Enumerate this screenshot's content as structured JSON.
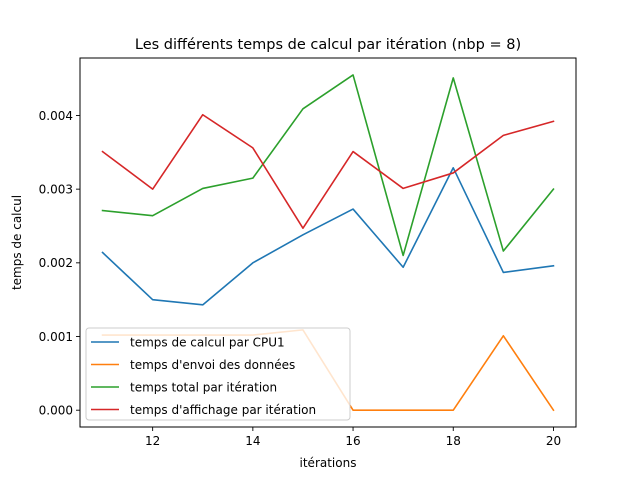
{
  "chart_data": {
    "type": "line",
    "title": "Les différents temps de calcul par itération (nbp = 8)",
    "xlabel": "itérations",
    "ylabel": "temps de calcul",
    "x": [
      11,
      12,
      13,
      14,
      15,
      16,
      17,
      18,
      19,
      20
    ],
    "xlim": [
      10.55,
      20.45
    ],
    "ylim": [
      -0.000228,
      0.00478
    ],
    "xticks": [
      12,
      14,
      16,
      18,
      20
    ],
    "yticks": [
      0.0,
      0.001,
      0.002,
      0.003,
      0.004
    ],
    "ytick_labels": [
      "0.000",
      "0.001",
      "0.002",
      "0.003",
      "0.004"
    ],
    "grid": false,
    "legend_position": "lower-left",
    "series": [
      {
        "name": "temps de calcul par CPU1",
        "color": "#1f77b4",
        "values": [
          0.00214,
          0.0015,
          0.00143,
          0.002,
          0.00238,
          0.00273,
          0.00194,
          0.00329,
          0.00187,
          0.00196
        ]
      },
      {
        "name": "temps d'envoi des données",
        "color": "#ff7f0e",
        "values": [
          0.00102,
          0.00102,
          0.00102,
          0.00102,
          0.00109,
          0.0,
          0.0,
          0.0,
          0.00101,
          0.0
        ]
      },
      {
        "name": "temps total par itération",
        "color": "#2ca02c",
        "values": [
          0.00271,
          0.00264,
          0.00301,
          0.00315,
          0.00409,
          0.00455,
          0.0021,
          0.00451,
          0.00216,
          0.003
        ]
      },
      {
        "name": "temps d'affichage par itération",
        "color": "#d62728",
        "values": [
          0.00351,
          0.003,
          0.00401,
          0.00356,
          0.00247,
          0.00351,
          0.00301,
          0.00322,
          0.00373,
          0.00392
        ]
      }
    ]
  }
}
